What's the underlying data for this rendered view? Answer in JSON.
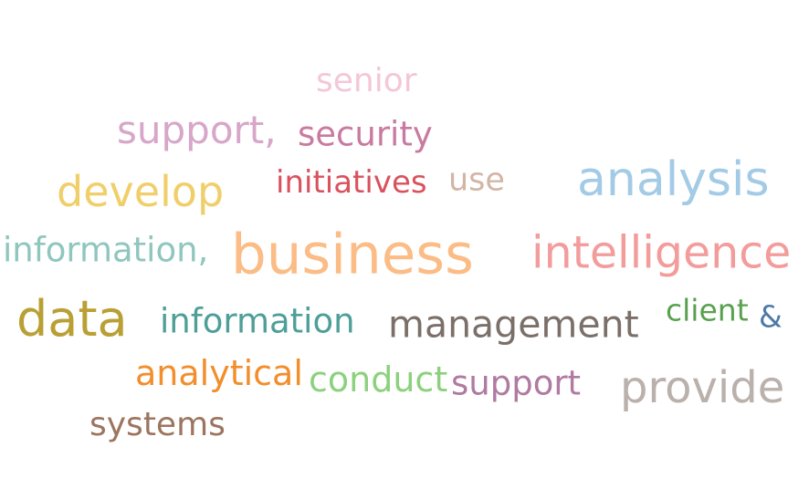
{
  "words": [
    {
      "text": "senior",
      "color": "#f4c7d8"
    },
    {
      "text": "support,",
      "color": "#d7a6c9"
    },
    {
      "text": "security",
      "color": "#c97aa0"
    },
    {
      "text": "develop",
      "color": "#f0cf6a"
    },
    {
      "text": "initiatives",
      "color": "#d9525e"
    },
    {
      "text": "use",
      "color": "#d3b5a6"
    },
    {
      "text": "analysis",
      "color": "#a3cbe6"
    },
    {
      "text": "information,",
      "color": "#8fc6be"
    },
    {
      "text": "business",
      "color": "#fbbc86"
    },
    {
      "text": "intelligence",
      "color": "#f39c9c"
    },
    {
      "text": "data",
      "color": "#b9a035"
    },
    {
      "text": "information",
      "color": "#4e9f98"
    },
    {
      "text": "management",
      "color": "#7b7069"
    },
    {
      "text": "client",
      "color": "#59a14f"
    },
    {
      "text": "&",
      "color": "#4e79a7"
    },
    {
      "text": "analytical",
      "color": "#f28e2b"
    },
    {
      "text": "conduct",
      "color": "#8cd17d"
    },
    {
      "text": "support",
      "color": "#b07aa1"
    },
    {
      "text": "provide",
      "color": "#bab0ac"
    },
    {
      "text": "systems",
      "color": "#9c755f"
    }
  ]
}
